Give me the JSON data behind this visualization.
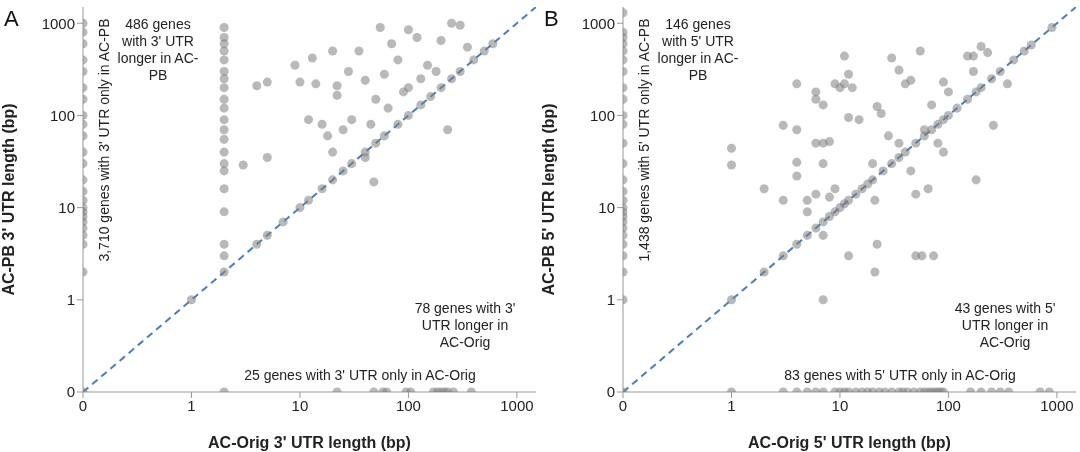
{
  "chart_data": [
    {
      "type": "scatter",
      "title": "A",
      "xlabel": "AC-Orig 3' UTR length (bp)",
      "ylabel": "AC-PB 3' UTR length (bp)",
      "log": "xy",
      "grid": false,
      "marker": "circle",
      "xlim": [
        0.1,
        1500
      ],
      "ylim": [
        0.1,
        1500
      ],
      "xticks": [
        {
          "value": 0.1,
          "label": "0"
        },
        1,
        10,
        100,
        1000
      ],
      "yticks": [
        {
          "value": 0.1,
          "label": "0"
        },
        1,
        10,
        100,
        1000
      ],
      "annotations": [
        "3,710 genes with 3' UTR only in AC-PB",
        "486 genes with 3' UTR longer in AC-PB",
        "78 genes with 3' UTR longer in AC-Orig",
        "25 genes with 3' UTR only in AC-Orig"
      ],
      "series": [
        {
          "type": "scatter",
          "color": "#808080",
          "x": [
            0.1,
            0.1,
            0.1,
            0.1,
            0.1,
            0.1,
            0.1,
            0.1,
            0.1,
            0.1,
            0.1,
            0.1,
            0.1,
            0.1,
            0.1,
            0.1,
            0.1,
            0.1,
            0.1,
            0.1,
            0.1,
            0.1,
            0.1,
            0.1,
            2,
            2,
            2,
            2,
            2,
            2,
            2,
            2,
            2,
            2,
            2,
            2,
            2,
            2,
            2,
            2,
            2,
            2,
            2,
            2,
            2,
            2,
            1,
            4,
            5,
            7,
            10,
            12,
            16,
            20,
            25,
            30,
            40,
            50,
            60,
            80,
            100,
            130,
            160,
            200,
            250,
            300,
            400,
            500,
            600,
            3,
            4,
            5,
            5,
            9,
            10,
            12,
            13,
            14,
            16,
            20,
            20,
            22,
            25,
            28,
            30,
            35,
            40,
            45,
            50,
            55,
            60,
            70,
            80,
            100,
            100,
            120,
            150,
            200,
            250,
            300,
            230,
            48,
            40,
            65,
            90,
            130,
            180,
            350,
            22,
            18,
            22,
            48,
            58,
            63,
            95,
            105,
            170,
            185,
            200,
            215,
            230,
            260,
            380
          ],
          "values": [
            0.1,
            2,
            4,
            5,
            6,
            7,
            8,
            9,
            10,
            12,
            15,
            20,
            30,
            40,
            60,
            80,
            100,
            150,
            200,
            300,
            400,
            600,
            800,
            1000,
            0.1,
            2,
            3,
            4,
            9,
            16,
            25,
            30,
            40,
            55,
            70,
            90,
            120,
            150,
            200,
            250,
            300,
            400,
            500,
            600,
            700,
            900,
            1,
            4,
            5,
            7,
            10,
            12,
            16,
            20,
            25,
            30,
            40,
            50,
            60,
            80,
            100,
            130,
            160,
            200,
            250,
            300,
            400,
            500,
            600,
            29,
            210,
            230,
            35,
            350,
            230,
            90,
            420,
            220,
            80,
            500,
            40,
            210,
            70,
            300,
            90,
            500,
            240,
            80,
            150,
            900,
            280,
            600,
            400,
            850,
            200,
            700,
            350,
            650,
            1000,
            950,
            70,
            19,
            35,
            120,
            180,
            250,
            300,
            550,
            165,
            60,
            0.1,
            0.1,
            0.1,
            0.1,
            0.1,
            0.1,
            0.1,
            0.1,
            0.1,
            0.1,
            0.1,
            0.1,
            0.1
          ]
        },
        {
          "type": "line",
          "color": "#4a7ebb",
          "line_style": "dashed",
          "marker": "none",
          "x": [
            0.1,
            1500
          ],
          "values": [
            0.1,
            1500
          ]
        }
      ]
    },
    {
      "type": "scatter",
      "title": "B",
      "xlabel": "AC-Orig 5' UTR length (bp)",
      "ylabel": "AC-PB 5' UTR length (bp)",
      "log": "xy",
      "grid": false,
      "marker": "circle",
      "xlim": [
        0.1,
        1500
      ],
      "ylim": [
        0.1,
        1500
      ],
      "xticks": [
        {
          "value": 0.1,
          "label": "0"
        },
        1,
        10,
        100,
        1000
      ],
      "yticks": [
        {
          "value": 0.1,
          "label": "0"
        },
        1,
        10,
        100,
        1000
      ],
      "annotations": [
        "1,438 genes with 5' UTR only in AC-PB",
        "146 genes with 5' UTR longer in AC-PB",
        "43 genes with 5' UTR longer in AC-Orig",
        "83 genes with 5' UTR only in AC-Orig"
      ],
      "series": [
        {
          "type": "scatter",
          "color": "#808080",
          "x": [
            0.1,
            0.1,
            0.1,
            0.1,
            0.1,
            0.1,
            0.1,
            0.1,
            0.1,
            0.1,
            0.1,
            0.1,
            0.1,
            0.1,
            0.1,
            0.1,
            0.1,
            0.1,
            0.1,
            0.1,
            0.1,
            0.1,
            0.1,
            0.1,
            0.1,
            0.1,
            0.1,
            1,
            2,
            3,
            4,
            5,
            6,
            7,
            8,
            9,
            10,
            11,
            12,
            14,
            16,
            18,
            20,
            25,
            30,
            35,
            40,
            50,
            60,
            70,
            80,
            90,
            100,
            120,
            150,
            180,
            200,
            250,
            300,
            400,
            500,
            580,
            900,
            1,
            1,
            2,
            3,
            3,
            4,
            4,
            4,
            4,
            5,
            5,
            6,
            6,
            6,
            6,
            7,
            7,
            7,
            7,
            7,
            8,
            8,
            9,
            9,
            10,
            11,
            11,
            12,
            12,
            12,
            13,
            15,
            20,
            21,
            21,
            22,
            22,
            24,
            30,
            35,
            40,
            45,
            55,
            50,
            57,
            73,
            60,
            70,
            90,
            80,
            100,
            150,
            170,
            180,
            200,
            230,
            260,
            350,
            170,
            65,
            50,
            45,
            90,
            35,
            28,
            1,
            3,
            4,
            5,
            6,
            7,
            9,
            10,
            11,
            12,
            14,
            16,
            18,
            20,
            23,
            26,
            30,
            35,
            38,
            42,
            48,
            55,
            60,
            65,
            70,
            75,
            80,
            85,
            90,
            160,
            200,
            250,
            300,
            360,
            700,
            850
          ],
          "values": [
            0.1,
            1,
            2,
            3,
            4,
            5,
            6,
            7,
            8,
            9,
            10,
            12,
            15,
            20,
            30,
            50,
            80,
            100,
            150,
            200,
            300,
            400,
            500,
            600,
            700,
            800,
            1300,
            1,
            2,
            3,
            4,
            5,
            6,
            7,
            8,
            9,
            10,
            11,
            12,
            14,
            16,
            18,
            20,
            25,
            30,
            35,
            40,
            50,
            60,
            70,
            80,
            90,
            100,
            120,
            150,
            180,
            200,
            250,
            300,
            400,
            500,
            580,
            900,
            44,
            29,
            16,
            78,
            12,
            220,
            70,
            31,
            22,
            12,
            9,
            180,
            150,
            50,
            14,
            130,
            50,
            30,
            5,
            1,
            52,
            13,
            220,
            16,
            200,
            440,
            220,
            280,
            95,
            3,
            200,
            90,
            30,
            12,
            2,
            4,
            125,
            105,
            420,
            310,
            220,
            240,
            500,
            3,
            3,
            3,
            70,
            130,
            230,
            50,
            180,
            440,
            440,
            20,
            560,
            480,
            78,
            220,
            300,
            16,
            14,
            25,
            40,
            50,
            60,
            0.1,
            0.1,
            0.1,
            0.1,
            0.1,
            0.1,
            0.1,
            0.1,
            0.1,
            0.1,
            0.1,
            0.1,
            0.1,
            0.1,
            0.1,
            0.1,
            0.1,
            0.1,
            0.1,
            0.1,
            0.1,
            0.1,
            0.1,
            0.1,
            0.1,
            0.1,
            0.1,
            0.1,
            0.1,
            0.1,
            0.1,
            0.1,
            0.1,
            0.1,
            0.1,
            0.1
          ]
        },
        {
          "type": "line",
          "color": "#4a7ebb",
          "line_style": "dashed",
          "marker": "none",
          "x": [
            0.1,
            1500
          ],
          "values": [
            0.1,
            1500
          ]
        }
      ]
    }
  ]
}
